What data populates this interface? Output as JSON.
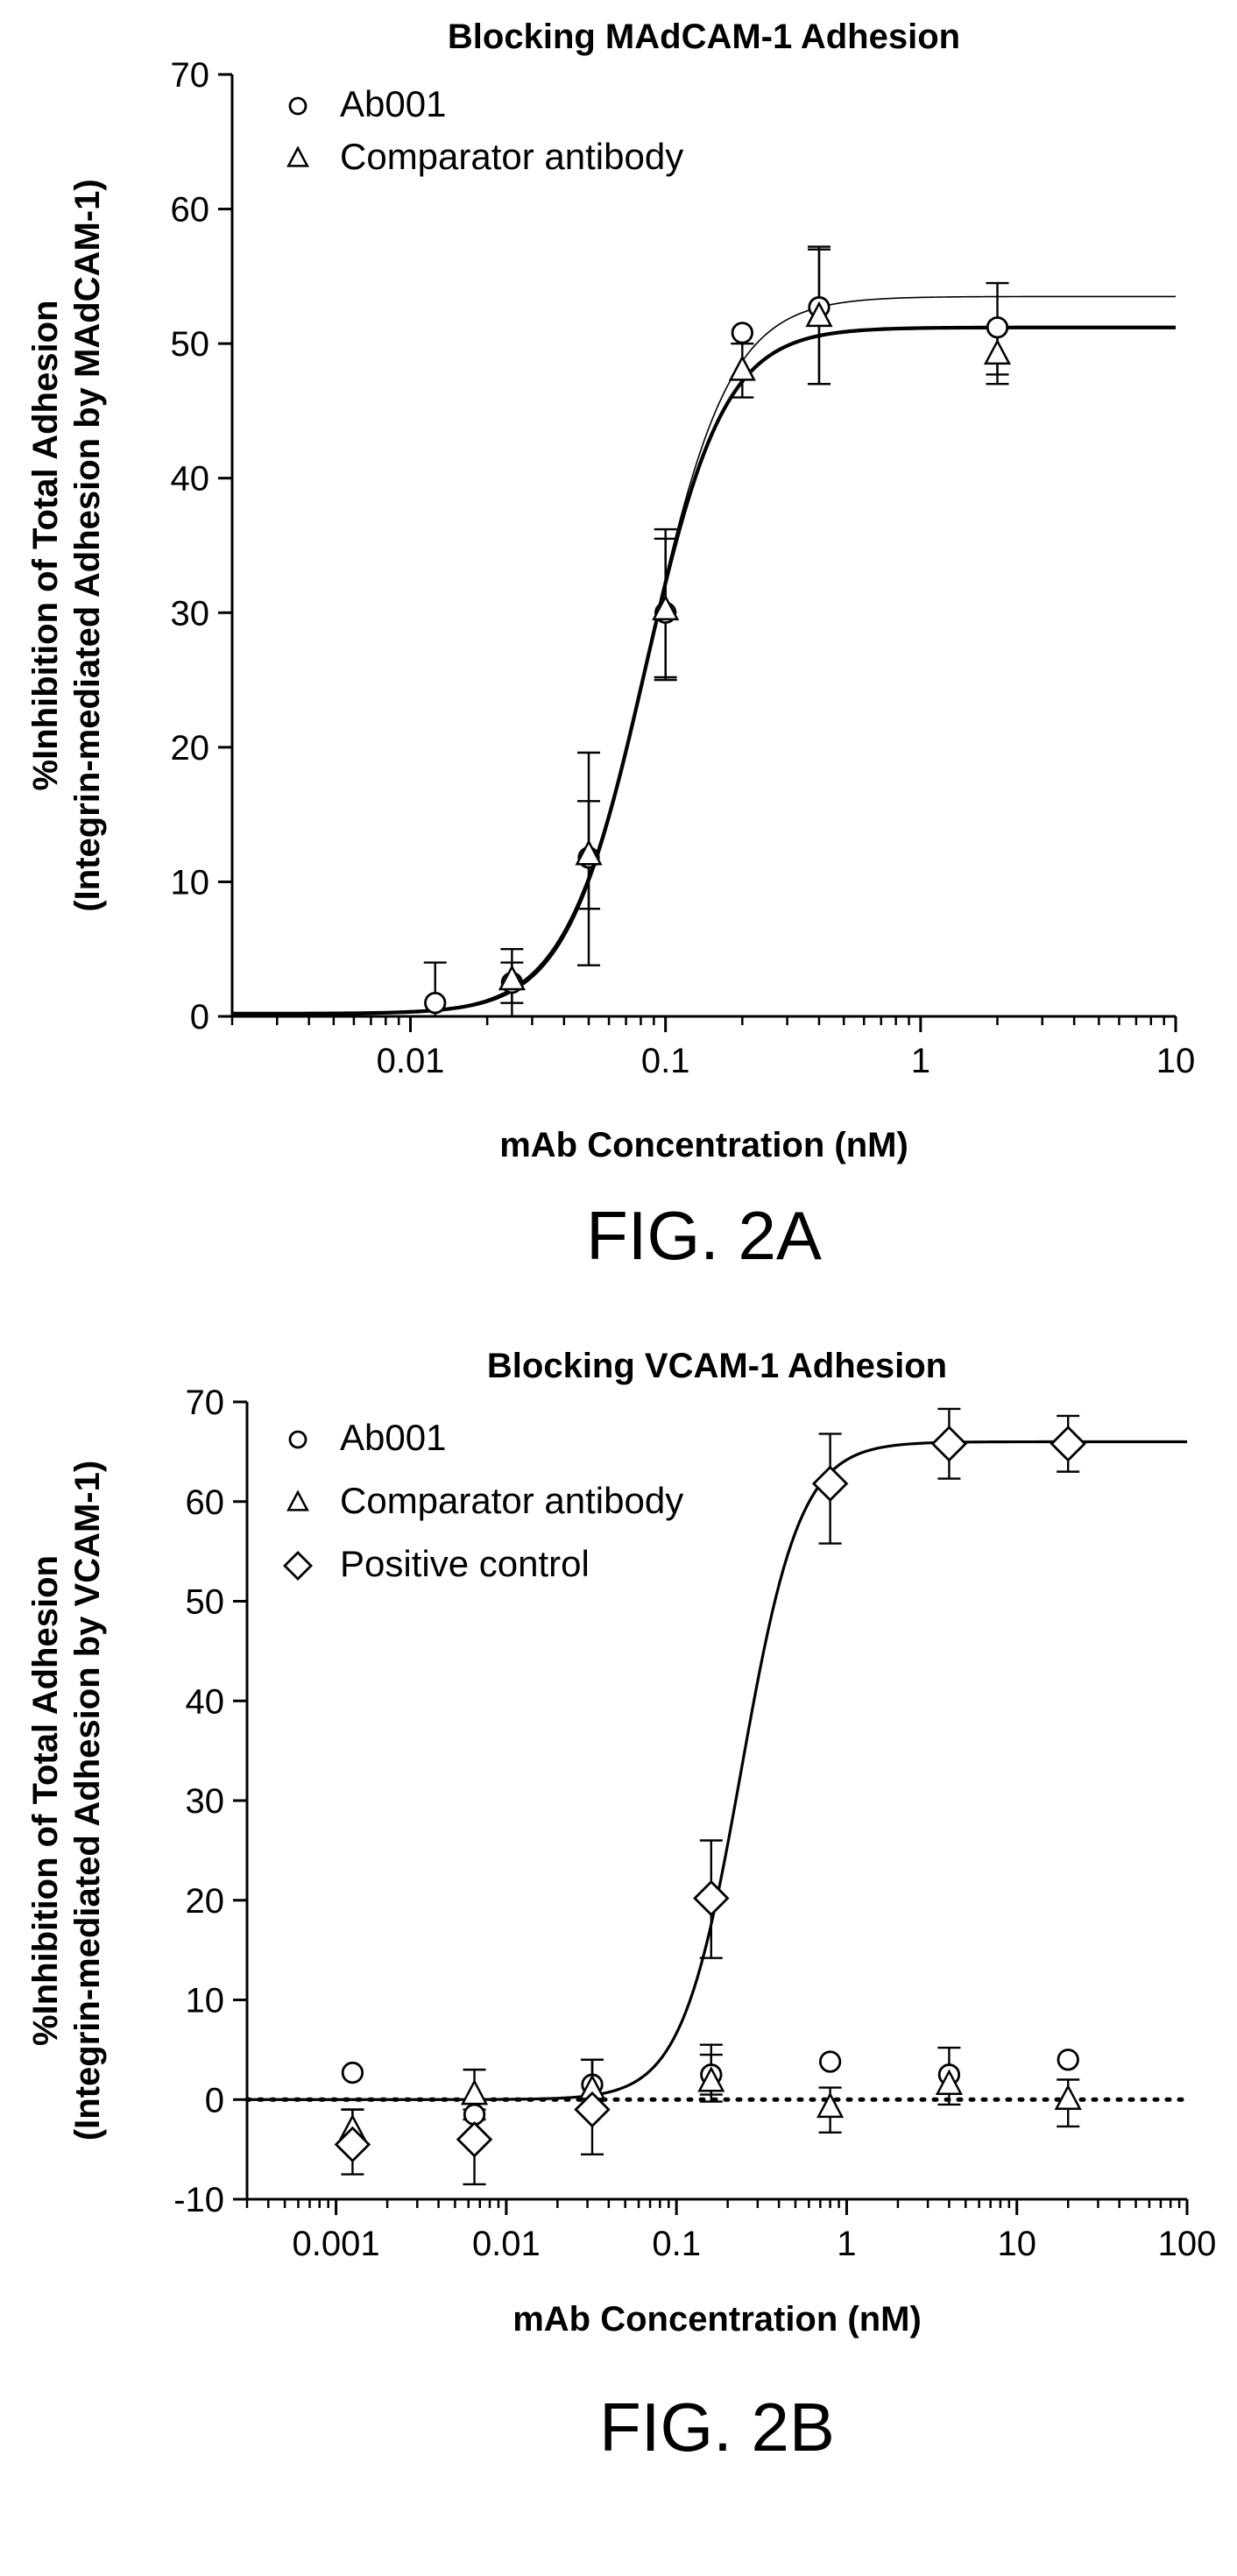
{
  "chart_data": [
    {
      "type": "scatter",
      "title": "Blocking MAdCAM-1 Adhesion",
      "xlabel": "mAb Concentration (nM)",
      "ylabel_line1": "%Inhibition of Total Adhesion",
      "ylabel_line2": "(Integrin-mediated Adhesion by MAdCAM-1)",
      "figure_label": "FIG. 2A",
      "x_scale": "log",
      "xlim": [
        0.002,
        10
      ],
      "ylim": [
        0,
        70
      ],
      "x_ticks": [
        {
          "value": 0.01,
          "label": "0.01"
        },
        {
          "value": 0.1,
          "label": "0.1"
        },
        {
          "value": 1,
          "label": "1"
        },
        {
          "value": 10,
          "label": "10"
        }
      ],
      "y_ticks": [
        {
          "value": 0,
          "label": "0"
        },
        {
          "value": 10,
          "label": "10"
        },
        {
          "value": 20,
          "label": "20"
        },
        {
          "value": 30,
          "label": "30"
        },
        {
          "value": 40,
          "label": "40"
        },
        {
          "value": 50,
          "label": "50"
        },
        {
          "value": 60,
          "label": "60"
        },
        {
          "value": 70,
          "label": "70"
        }
      ],
      "legend_position": "top-left",
      "grid": false,
      "series": [
        {
          "name": "Ab001",
          "marker": "circle",
          "points": [
            {
              "x": 0.0125,
              "y": 1.0,
              "err_hi": 3.0,
              "err_lo": 1.0
            },
            {
              "x": 0.025,
              "y": 2.5,
              "err_hi": 1.5,
              "err_lo": 1.5
            },
            {
              "x": 0.05,
              "y": 11.8,
              "err_hi": 7.8,
              "err_lo": 8.0
            },
            {
              "x": 0.1,
              "y": 30.0,
              "err_hi": 5.5,
              "err_lo": 5.0
            },
            {
              "x": 0.2,
              "y": 50.8,
              "err_hi": 0,
              "err_lo": 0
            },
            {
              "x": 0.4,
              "y": 52.7,
              "err_hi": 4.5,
              "err_lo": 5.7
            },
            {
              "x": 2.0,
              "y": 51.2,
              "err_hi": 3.3,
              "err_lo": 3.5
            }
          ],
          "fit": {
            "bottom": 0.2,
            "top": 53.5,
            "ec50": 0.085,
            "hill": 2.7,
            "line_width": 1.6
          }
        },
        {
          "name": "Comparator antibody",
          "marker": "triangle",
          "points": [
            {
              "x": 0.025,
              "y": 2.7,
              "err_hi": 2.3,
              "err_lo": 2.7
            },
            {
              "x": 0.05,
              "y": 12.0,
              "err_hi": 4.0,
              "err_lo": 4.0
            },
            {
              "x": 0.1,
              "y": 30.2,
              "err_hi": 6.0,
              "err_lo": 5.0
            },
            {
              "x": 0.2,
              "y": 48.0,
              "err_hi": 2.0,
              "err_lo": 2.0
            },
            {
              "x": 0.4,
              "y": 52.0,
              "err_hi": 5.0,
              "err_lo": 5.0
            },
            {
              "x": 2.0,
              "y": 49.2,
              "err_hi": 2.0,
              "err_lo": 2.2
            }
          ],
          "fit": {
            "bottom": 0.2,
            "top": 51.2,
            "ec50": 0.083,
            "hill": 2.8,
            "line_width": 4.2
          }
        }
      ]
    },
    {
      "type": "scatter",
      "title": "Blocking VCAM-1 Adhesion",
      "xlabel": "mAb Concentration (nM)",
      "ylabel_line1": "%Inhibition of Total Adhesion",
      "ylabel_line2": "(Integrin-mediated Adhesion by VCAM-1)",
      "figure_label": "FIG. 2B",
      "x_scale": "log",
      "xlim": [
        0.0003,
        100
      ],
      "ylim": [
        -10,
        70
      ],
      "x_ticks": [
        {
          "value": 0.001,
          "label": "0.001"
        },
        {
          "value": 0.01,
          "label": "0.01"
        },
        {
          "value": 0.1,
          "label": "0.1"
        },
        {
          "value": 1,
          "label": "1"
        },
        {
          "value": 10,
          "label": "10"
        },
        {
          "value": 100,
          "label": "100"
        }
      ],
      "y_ticks": [
        {
          "value": -10,
          "label": "-10"
        },
        {
          "value": 0,
          "label": "0"
        },
        {
          "value": 10,
          "label": "10"
        },
        {
          "value": 20,
          "label": "20"
        },
        {
          "value": 30,
          "label": "30"
        },
        {
          "value": 40,
          "label": "40"
        },
        {
          "value": 50,
          "label": "50"
        },
        {
          "value": 60,
          "label": "60"
        },
        {
          "value": 70,
          "label": "70"
        }
      ],
      "legend_position": "top-left",
      "grid": false,
      "baseline": {
        "y": 0,
        "style": "dotted"
      },
      "series": [
        {
          "name": "Ab001",
          "marker": "circle",
          "points": [
            {
              "x": 0.00125,
              "y": 2.7,
              "err_hi": 0,
              "err_lo": 0
            },
            {
              "x": 0.0065,
              "y": -1.5,
              "err_hi": 0,
              "err_lo": 0
            },
            {
              "x": 0.032,
              "y": 1.5,
              "err_hi": 2.5,
              "err_lo": 2.5
            },
            {
              "x": 0.16,
              "y": 2.5,
              "err_hi": 2.0,
              "err_lo": 2.0
            },
            {
              "x": 0.8,
              "y": 3.8,
              "err_hi": 0,
              "err_lo": 0
            },
            {
              "x": 4.0,
              "y": 2.5,
              "err_hi": 0,
              "err_lo": 0
            },
            {
              "x": 20.0,
              "y": 4.0,
              "err_hi": 0,
              "err_lo": 0
            }
          ]
        },
        {
          "name": "Comparator antibody",
          "marker": "triangle",
          "points": [
            {
              "x": 0.00125,
              "y": -3.0,
              "err_hi": 2.0,
              "err_lo": 2.0
            },
            {
              "x": 0.0065,
              "y": 0.5,
              "err_hi": 2.5,
              "err_lo": 2.5
            },
            {
              "x": 0.032,
              "y": 1.0,
              "err_hi": 3.0,
              "err_lo": 2.0
            },
            {
              "x": 0.16,
              "y": 1.8,
              "err_hi": 3.7,
              "err_lo": 2.0
            },
            {
              "x": 0.8,
              "y": -0.8,
              "err_hi": 2.0,
              "err_lo": 2.5
            },
            {
              "x": 4.0,
              "y": 1.5,
              "err_hi": 3.7,
              "err_lo": 2.0
            },
            {
              "x": 20.0,
              "y": 0.0,
              "err_hi": 2.0,
              "err_lo": 2.7
            }
          ]
        },
        {
          "name": "Positive control",
          "marker": "diamond",
          "points": [
            {
              "x": 0.00125,
              "y": -4.5,
              "err_hi": 3.5,
              "err_lo": 3.0
            },
            {
              "x": 0.0065,
              "y": -4.0,
              "err_hi": 3.0,
              "err_lo": 4.5
            },
            {
              "x": 0.032,
              "y": -1.0,
              "err_hi": 5.0,
              "err_lo": 4.5
            },
            {
              "x": 0.16,
              "y": 20.2,
              "err_hi": 5.8,
              "err_lo": 6.0
            },
            {
              "x": 0.8,
              "y": 61.8,
              "err_hi": 5.0,
              "err_lo": 6.0
            },
            {
              "x": 4.0,
              "y": 65.8,
              "err_hi": 3.5,
              "err_lo": 3.5
            },
            {
              "x": 20.0,
              "y": 65.8,
              "err_hi": 2.8,
              "err_lo": 2.8
            }
          ],
          "fit": {
            "bottom": 0.0,
            "top": 66.0,
            "ec50": 0.24,
            "hill": 2.5,
            "line_width": 3.2
          }
        }
      ]
    }
  ]
}
